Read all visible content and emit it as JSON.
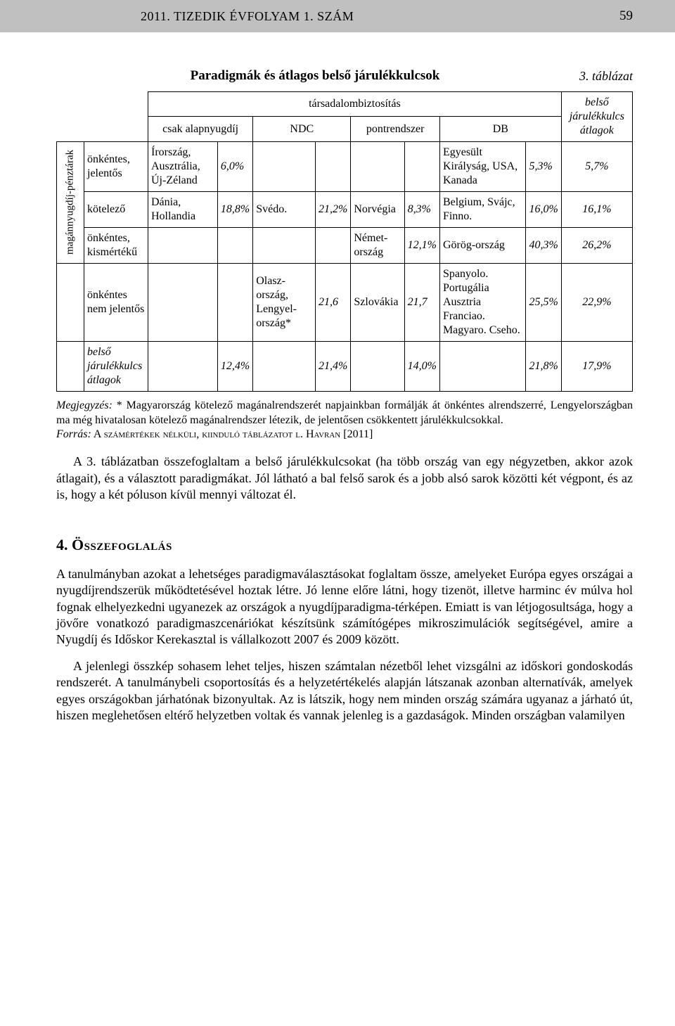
{
  "header": {
    "issue": "2011. TIZEDIK ÉVFOLYAM 1. SZÁM",
    "page_number": "59"
  },
  "table": {
    "number_label": "3. táblázat",
    "title": "Paradigmák és átlagos belső járulékkulcsok",
    "super_header": "társadalombiztosítás",
    "col_headers": {
      "c1": "csak alapnyugdíj",
      "c2": "NDC",
      "c3": "pontrendszer",
      "c4": "DB",
      "c5": "belső járulékkulcs átlagok"
    },
    "side_header": "magánnyugdíj-pénztárak",
    "row_headers": {
      "r1": "önkéntes, jelentős",
      "r2": "kötelező",
      "r3": "önkéntes, kismértékű",
      "r4": "önkéntes nem jelentős",
      "r5": "belső járulékkulcs átlagok"
    },
    "cells": {
      "r1": {
        "c1a": "Írország, Ausztrália, Új-Zéland",
        "c1b": "6,0%",
        "c4a": "Egyesült Királyság, USA, Kanada",
        "c4b": "5,3%",
        "c5": "5,7%"
      },
      "r2": {
        "c1a": "Dánia, Hollandia",
        "c1b": "18,8%",
        "c2a": "Svédo.",
        "c2b": "21,2%",
        "c3a": "Norvégia",
        "c3b": "8,3%",
        "c4a": "Belgium, Svájc, Finno.",
        "c4b": "16,0%",
        "c5": "16,1%"
      },
      "r3": {
        "c3a": "Német-ország",
        "c3b": "12,1%",
        "c4a": "Görög-ország",
        "c4b": "40,3%",
        "c5": "26,2%"
      },
      "r4": {
        "c2a": "Olasz-ország, Lengyel-ország*",
        "c2b": "21,6",
        "c3a": "Szlovákia",
        "c3b": "21,7",
        "c4a": "Spanyolo. Portugália Ausztria Franciao. Magyaro. Cseho.",
        "c4b": "25,5%",
        "c5": "22,9%"
      },
      "r5": {
        "c1b": "12,4%",
        "c2b": "21,4%",
        "c4b": "14,0%",
        "c4c": "21,8%",
        "c5": "17,9%"
      }
    },
    "note_label": "Megjegyzés:",
    "note_body": " * Magyarország kötelező magánalrendszerét napjainkban formálják át önkéntes alrendszerré, Lengyelországban ma még hivatalosan kötelező magánalrendszer létezik, de jelentősen csökkentett járulékkulcsokkal.",
    "source_label": "Forrás:",
    "source_body": " A számértékek nélküli, kiinduló táblázatot l. Havran [2011]"
  },
  "para1": "A 3. táblázatban összefoglaltam a belső járulékkulcsokat (ha több ország van egy négyzetben, akkor azok átlagait), és a választott paradigmákat. Jól látható a bal felső sarok és a jobb alsó sarok közötti két végpont, és az is, hogy a két póluson kívül mennyi változat él.",
  "section": {
    "num": "4.",
    "title": "Összefoglalás"
  },
  "para2": "A tanulmányban azokat a lehetséges paradigmaválasztásokat foglaltam össze, amelyeket Európa egyes országai a nyugdíjrendszerük működtetésével hoztak létre. Jó lenne előre látni, hogy tizenöt, illetve harminc év múlva hol fognak elhelyezkedni ugyanezek az országok a nyugdíjparadigma-térképen. Emiatt is van létjogosultsága, hogy a jövőre vonatkozó paradigmaszcenáriókat készítsünk számítógépes mikroszimulációk segítségével, amire a Nyugdíj és Időskor Kerekasztal is vállalkozott 2007 és 2009 között.",
  "para3": "A jelenlegi összkép sohasem lehet teljes, hiszen számtalan nézetből lehet vizsgálni az időskori gondoskodás rendszerét. A tanulmánybeli csoportosítás és a helyzetértékelés alapján látszanak azonban alternatívák, amelyek egyes országokban járhatónak bizonyultak. Az is látszik, hogy nem minden ország számára ugyanaz a járható út, hiszen meglehetősen eltérő helyzetben voltak és vannak jelenleg is a gazdaságok. Minden országban valamilyen"
}
